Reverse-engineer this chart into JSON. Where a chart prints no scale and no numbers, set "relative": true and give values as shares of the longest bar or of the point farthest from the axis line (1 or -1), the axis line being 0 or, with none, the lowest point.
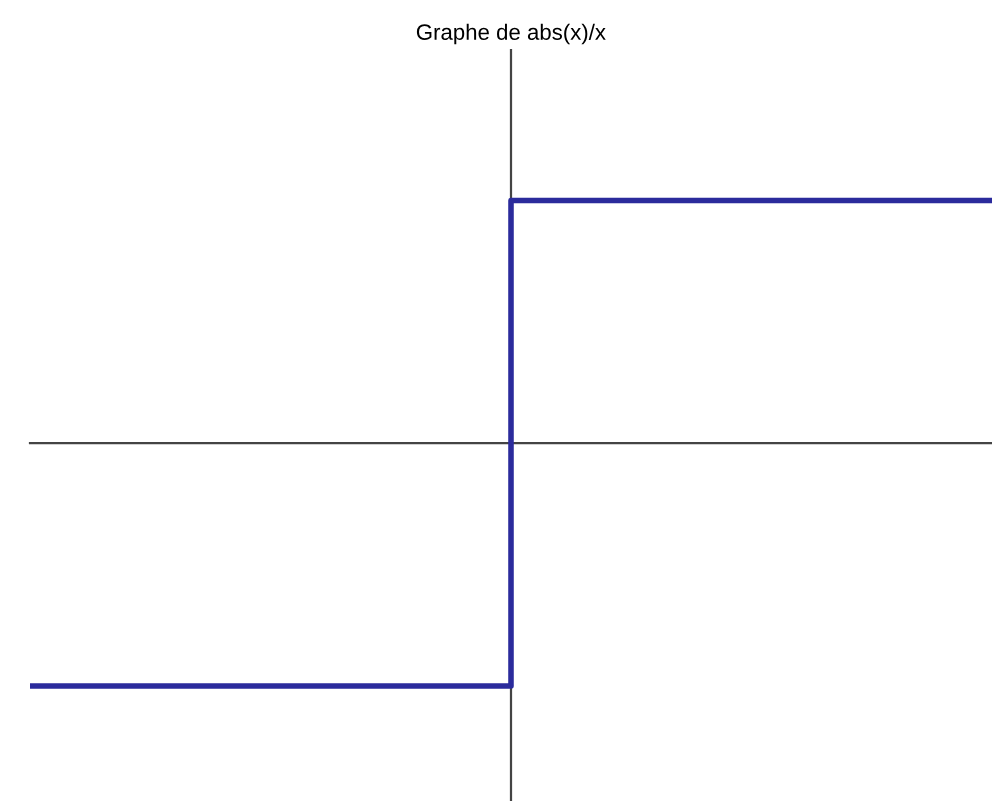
{
  "chart_data": {
    "type": "step",
    "title": "Graphe de abs(x)/x",
    "relative": true,
    "categories": [
      null,
      null,
      null
    ],
    "series": [
      {
        "color": "#2b2b9c",
        "values": [
          -1,
          1,
          1
        ]
      }
    ],
    "marker": "none",
    "line_style": "solid"
  }
}
